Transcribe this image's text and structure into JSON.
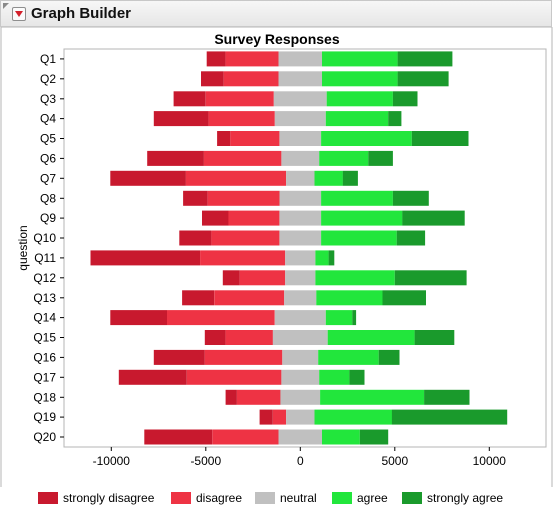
{
  "app": {
    "title": "Graph Builder"
  },
  "chart_data": {
    "type": "bar",
    "orientation": "horizontal",
    "stacked": "diverging",
    "title": "Survey Responses",
    "ylabel": "question",
    "xlabel": "",
    "xlim": [
      -12500,
      13000
    ],
    "xticks": [
      -10000,
      -5000,
      0,
      5000,
      10000
    ],
    "xtick_labels": [
      "-10000",
      "-5000",
      "0",
      "5000",
      "10000"
    ],
    "grid": false,
    "legend_position": "bottom",
    "categories": [
      "Q1",
      "Q2",
      "Q3",
      "Q4",
      "Q5",
      "Q6",
      "Q7",
      "Q8",
      "Q9",
      "Q10",
      "Q11",
      "Q12",
      "Q13",
      "Q14",
      "Q15",
      "Q16",
      "Q17",
      "Q18",
      "Q19",
      "Q20"
    ],
    "series": [
      {
        "name": "strongly disagree",
        "color": "#c8192e",
        "values": [
          1000,
          1200,
          1700,
          2900,
          700,
          3000,
          4000,
          1300,
          1400,
          1700,
          5800,
          900,
          1700,
          3000,
          1100,
          2700,
          3600,
          600,
          700,
          3600
        ]
      },
      {
        "name": "disagree",
        "color": "#ee3344",
        "values": [
          2800,
          2900,
          3600,
          3500,
          2600,
          4100,
          5300,
          3800,
          2700,
          3600,
          4500,
          2400,
          3700,
          5700,
          2500,
          4100,
          5000,
          2300,
          700,
          3500
        ]
      },
      {
        "name": "neutral",
        "color": "#c0c0c0",
        "values": [
          2300,
          2300,
          2800,
          2700,
          2200,
          2000,
          1500,
          2200,
          2200,
          2200,
          1600,
          1600,
          1700,
          2700,
          2900,
          1900,
          2000,
          2100,
          1500,
          2300
        ]
      },
      {
        "name": "agree",
        "color": "#22e63c",
        "values": [
          4000,
          4000,
          3500,
          3300,
          4800,
          2600,
          1500,
          3800,
          4300,
          4000,
          700,
          4200,
          3500,
          1400,
          4600,
          3200,
          1600,
          5500,
          4100,
          2000
        ]
      },
      {
        "name": "strongly agree",
        "color": "#1a9a2c",
        "values": [
          2900,
          2700,
          1300,
          700,
          3000,
          1300,
          800,
          1900,
          3300,
          1500,
          300,
          3800,
          2300,
          200,
          2100,
          1100,
          800,
          2400,
          6100,
          1500
        ]
      }
    ]
  }
}
